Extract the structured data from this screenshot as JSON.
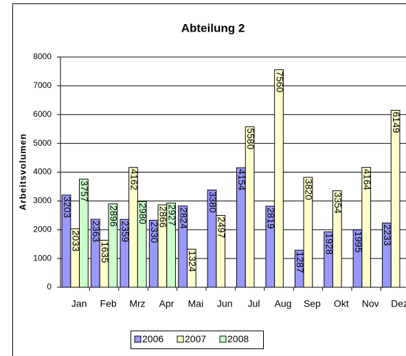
{
  "chart_data": {
    "type": "bar",
    "title": "Abteilung 2",
    "y_label": "Arbeitsvolumen",
    "categories": [
      "Jan",
      "Feb",
      "Mrz",
      "Apr",
      "Mai",
      "Jun",
      "Jul",
      "Aug",
      "Sep",
      "Okt",
      "Nov",
      "Dez"
    ],
    "series": [
      {
        "name": "2006",
        "color": "#9999ff",
        "values": [
          3203,
          2363,
          2359,
          2330,
          2824,
          3380,
          4154,
          2819,
          1287,
          1928,
          1995,
          2233
        ]
      },
      {
        "name": "2007",
        "color": "#ffffcc",
        "values": [
          2033,
          1635,
          4162,
          2866,
          1324,
          2497,
          5580,
          7560,
          3820,
          3354,
          4164,
          6149
        ]
      },
      {
        "name": "2008",
        "color": "#ccffcc",
        "values": [
          3757,
          2896,
          2980,
          2927,
          null,
          null,
          null,
          null,
          null,
          null,
          null,
          null
        ]
      }
    ],
    "ylim": [
      0,
      8000
    ],
    "yticks": [
      0,
      1000,
      2000,
      3000,
      4000,
      5000,
      6000,
      7000,
      8000
    ],
    "grid": true,
    "legend": "bottom"
  }
}
